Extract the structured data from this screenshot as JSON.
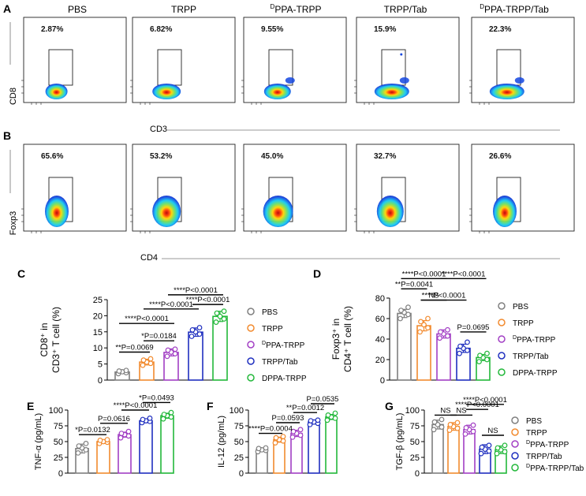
{
  "colors": {
    "PBS": "#7f7f7f",
    "TRPP": "#f28a2e",
    "DPPA-TRPP": "#a23fc4",
    "TRPP/Tab": "#1f2fbf",
    "DPPA-TRPP/Tab": "#22b83a"
  },
  "panelA": {
    "letter": "A",
    "ylabel": "CD8",
    "xlabel": "CD3",
    "titles": [
      {
        "main": "PBS",
        "sup": ""
      },
      {
        "main": "TRPP",
        "sup": ""
      },
      {
        "main": "PPA-TRPP",
        "sup": "D"
      },
      {
        "main": "TRPP/Tab",
        "sup": ""
      },
      {
        "main": "PPA-TRPP/Tab",
        "sup": "D"
      }
    ],
    "percents": [
      "2.87%",
      "6.82%",
      "9.55%",
      "15.9%",
      "22.3%"
    ]
  },
  "panelB": {
    "letter": "B",
    "ylabel": "Foxp3",
    "xlabel": "CD4",
    "percents": [
      "65.6%",
      "53.2%",
      "45.0%",
      "32.7%",
      "26.6%"
    ]
  },
  "panelC": {
    "letter": "C",
    "ylabel_lines": [
      "CD8⁺ in",
      "CD3⁺ T cell (%)"
    ],
    "legend": [
      {
        "main": "PBS",
        "sup": ""
      },
      {
        "main": "TRPP",
        "sup": ""
      },
      {
        "main": "PPA-TRPP",
        "sup": "D"
      },
      {
        "main": "TRPP/Tab",
        "sup": ""
      },
      {
        "main": "DPPA-TRPP",
        "sup": ""
      }
    ],
    "stats": [
      "**P=0.0069",
      "*P=0.0184",
      "****P<0.0001",
      "****P<0.0001",
      "****P<0.0001",
      "****P<0.0001"
    ]
  },
  "panelD": {
    "letter": "D",
    "ylabel_lines": [
      "Foxp3⁺ in",
      "CD4⁺ T cell (%)"
    ],
    "legend": [
      {
        "main": "PBS",
        "sup": ""
      },
      {
        "main": "TRPP",
        "sup": ""
      },
      {
        "main": "PPA-TRPP",
        "sup": "D"
      },
      {
        "main": "TRPP/Tab",
        "sup": ""
      },
      {
        "main": "DPPA-TRPP",
        "sup": ""
      }
    ],
    "stats": [
      "****P<0.0001",
      "****P<0.0001",
      "**P=0.0041",
      "NS",
      "****P<0.0001",
      "P=0.0695"
    ]
  },
  "panelE": {
    "letter": "E",
    "ylabel": "TNF-α (pg/mL)",
    "stats": [
      "*P=0.0493",
      "****P<0.0001",
      "P=0.0616",
      "*P=0.0132"
    ]
  },
  "panelF": {
    "letter": "F",
    "ylabel": "IL-12 (pg/mL)",
    "stats": [
      "P=0.0535",
      "**P=0.0012",
      "P=0.0593",
      "****P=0.0004"
    ]
  },
  "panelG": {
    "letter": "G",
    "ylabel": "TGF-β (pg/mL)",
    "legend": [
      {
        "main": "PBS",
        "sup": ""
      },
      {
        "main": "TRPP",
        "sup": ""
      },
      {
        "main": "PPA-TRPP",
        "sup": "D"
      },
      {
        "main": "TRPP/Tab",
        "sup": ""
      },
      {
        "main": "PPA-TRPP/Tab",
        "sup": "D"
      }
    ],
    "stats": [
      "NS",
      "NS",
      "****P<0.0001",
      "****P<0.0001",
      "NS"
    ]
  },
  "chart_data": [
    {
      "id": "C",
      "type": "bar",
      "categories": [
        "PBS",
        "TRPP",
        "DPPA-TRPP",
        "TRPP/Tab",
        "DPPA-TRPP"
      ],
      "values": [
        2.5,
        5.6,
        8.6,
        14.9,
        19.8
      ],
      "errors": [
        0.5,
        0.9,
        1.1,
        1.3,
        1.6
      ],
      "points": [
        [
          2.0,
          2.3,
          2.6,
          2.8,
          3.0
        ],
        [
          4.6,
          5.2,
          5.6,
          6.2,
          6.6
        ],
        [
          7.4,
          8.2,
          8.7,
          9.3,
          9.6
        ],
        [
          13.6,
          14.3,
          15.0,
          15.6,
          16.3
        ],
        [
          18.0,
          19.0,
          19.8,
          20.8,
          21.4
        ]
      ],
      "ylim": [
        0,
        25
      ],
      "yticks": [
        0,
        5,
        10,
        15,
        20,
        25
      ],
      "brackets": [
        {
          "from": 0,
          "to": 1,
          "level": 8.7,
          "label": "**P=0.0069"
        },
        {
          "from": 1,
          "to": 2,
          "level": 12.2,
          "label": "*P=0.0184"
        },
        {
          "from": 0,
          "to": 2,
          "level": 17.6,
          "label": "****P<0.0001"
        },
        {
          "from": 1,
          "to": 3,
          "level": 22.1,
          "label": "****P<0.0001"
        },
        {
          "from": 3,
          "to": 4,
          "level": 23.5,
          "label": "****P<0.0001"
        },
        {
          "from": 2,
          "to": 4,
          "level": 26.5,
          "label": "****P<0.0001"
        }
      ]
    },
    {
      "id": "D",
      "type": "bar",
      "categories": [
        "PBS",
        "TRPP",
        "DPPA-TRPP",
        "TRPP/Tab",
        "DPPA-TRPP"
      ],
      "values": [
        65,
        53,
        45,
        31,
        22
      ],
      "errors": [
        4,
        5,
        4,
        4,
        3
      ],
      "points": [
        [
          60,
          64,
          66,
          68,
          71
        ],
        [
          47,
          51,
          54,
          57,
          60
        ],
        [
          41,
          43,
          45,
          47,
          49
        ],
        [
          26,
          29,
          31,
          33,
          37
        ],
        [
          18,
          20,
          22,
          24,
          26
        ]
      ],
      "ylim": [
        0,
        80
      ],
      "yticks": [
        0,
        20,
        40,
        60,
        80
      ],
      "brackets": [
        {
          "from": 0,
          "to": 2,
          "level": 99,
          "label": "****P<0.0001"
        },
        {
          "from": 2,
          "to": 4,
          "level": 99,
          "label": "****P<0.0001"
        },
        {
          "from": 0,
          "to": 1,
          "level": 89,
          "label": "**P=0.0041"
        },
        {
          "from": 1,
          "to": 2,
          "level": 78,
          "label": "NS"
        },
        {
          "from": 1,
          "to": 3,
          "level": 78,
          "label": "****P<0.0001"
        },
        {
          "from": 3,
          "to": 4,
          "level": 47,
          "label": "P=0.0695"
        }
      ]
    },
    {
      "id": "E",
      "type": "bar",
      "categories": [
        "PBS",
        "TRPP",
        "DPPA-TRPP",
        "TRPP/Tab",
        "DPPA-TRPP/Tab"
      ],
      "values": [
        39,
        50,
        61,
        83,
        91
      ],
      "errors": [
        7,
        3,
        4,
        3,
        4
      ],
      "points": [
        [
          32,
          37,
          40,
          43,
          47
        ],
        [
          47,
          49,
          50,
          52,
          53
        ],
        [
          56,
          59,
          61,
          63,
          66
        ],
        [
          80,
          82,
          83,
          85,
          87
        ],
        [
          86,
          89,
          91,
          93,
          96
        ]
      ],
      "ylim": [
        0,
        100
      ],
      "yticks": [
        0,
        25,
        50,
        75,
        100
      ],
      "brackets": [
        {
          "from": 3,
          "to": 4,
          "level": 112,
          "label": "*P=0.0493"
        },
        {
          "from": 2,
          "to": 3,
          "level": 100,
          "label": "****P<0.0001"
        },
        {
          "from": 1,
          "to": 2,
          "level": 79,
          "label": "P=0.0616"
        },
        {
          "from": 0,
          "to": 1,
          "level": 61,
          "label": "*P=0.0132"
        }
      ]
    },
    {
      "id": "F",
      "type": "bar",
      "categories": [
        "PBS",
        "TRPP",
        "DPPA-TRPP",
        "TRPP/Tab",
        "DPPA-TRPP/Tab"
      ],
      "values": [
        37,
        53,
        63,
        81,
        89
      ],
      "errors": [
        2,
        4,
        5,
        3,
        4
      ],
      "points": [
        [
          34,
          36,
          37,
          39,
          40
        ],
        [
          48,
          51,
          53,
          56,
          58
        ],
        [
          57,
          60,
          63,
          66,
          69
        ],
        [
          77,
          79,
          81,
          83,
          84
        ],
        [
          84,
          87,
          89,
          92,
          95
        ]
      ],
      "ylim": [
        0,
        100
      ],
      "yticks": [
        0,
        25,
        50,
        75,
        100
      ],
      "brackets": [
        {
          "from": 3,
          "to": 4,
          "level": 110,
          "label": "P=0.0535"
        },
        {
          "from": 2,
          "to": 3,
          "level": 96,
          "label": "**P=0.0012"
        },
        {
          "from": 1,
          "to": 2,
          "level": 80,
          "label": "P=0.0593"
        },
        {
          "from": 0,
          "to": 1,
          "level": 63,
          "label": "****P=0.0004"
        }
      ]
    },
    {
      "id": "G",
      "type": "bar",
      "categories": [
        "PBS",
        "TRPP",
        "DPPA-TRPP",
        "TRPP/Tab",
        "DPPA-TRPP/Tab"
      ],
      "values": [
        77,
        74,
        69,
        38,
        37
      ],
      "errors": [
        7,
        6,
        7,
        7,
        6
      ],
      "points": [
        [
          69,
          73,
          77,
          81,
          85
        ],
        [
          68,
          71,
          74,
          77,
          80
        ],
        [
          62,
          66,
          69,
          72,
          76
        ],
        [
          31,
          35,
          38,
          41,
          44
        ],
        [
          31,
          34,
          37,
          40,
          44
        ]
      ],
      "ylim": [
        0,
        100
      ],
      "yticks": [
        0,
        25,
        50,
        75,
        100
      ],
      "brackets": [
        {
          "from": 0,
          "to": 1,
          "level": 92,
          "label": "NS"
        },
        {
          "from": 1,
          "to": 2,
          "level": 92,
          "label": "NS"
        },
        {
          "from": 2,
          "to": 4,
          "level": 109,
          "label": "****P<0.0001"
        },
        {
          "from": 2,
          "to": 3,
          "level": 101,
          "label": "****P<0.0001"
        },
        {
          "from": 3,
          "to": 4,
          "level": 60,
          "label": "NS"
        }
      ]
    }
  ]
}
